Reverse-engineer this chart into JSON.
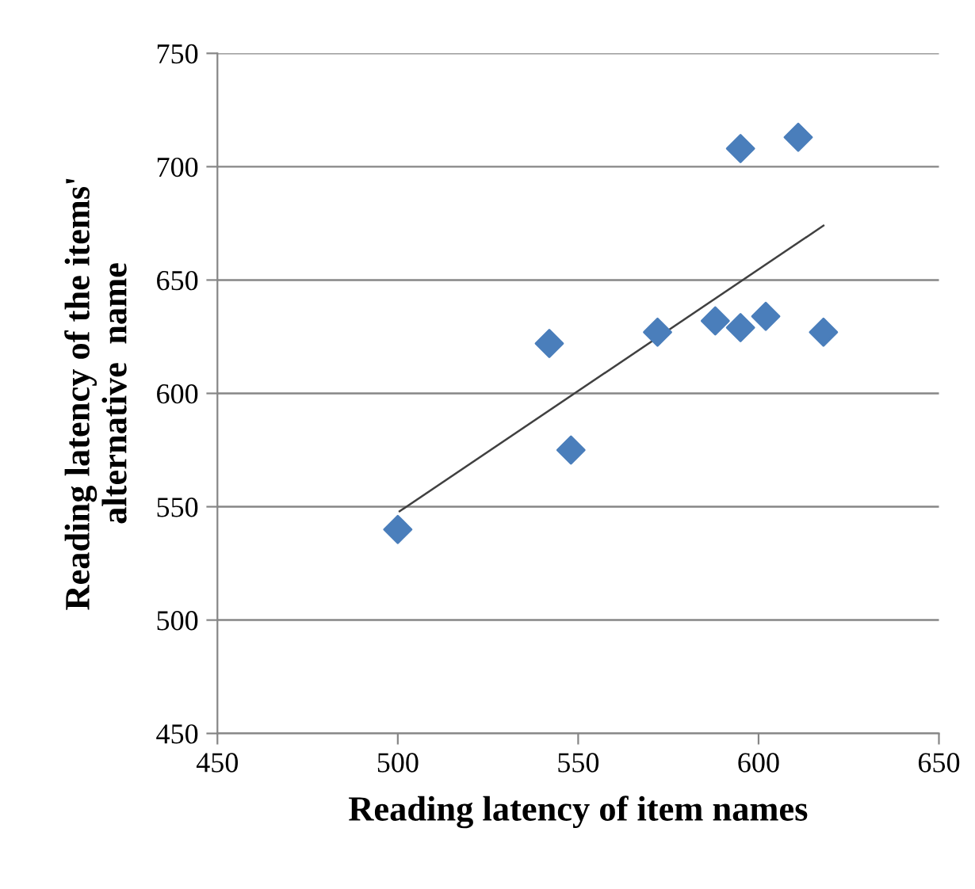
{
  "chart_data": {
    "type": "scatter",
    "xlabel": "Reading latency of item names",
    "ylabel": "Reading latency of the items'\nalternative  name",
    "xlim": [
      450,
      650
    ],
    "xticks": [
      450,
      500,
      550,
      600,
      650
    ],
    "ylim": [
      450,
      750
    ],
    "yticks": [
      450,
      500,
      550,
      600,
      650,
      700,
      750
    ],
    "grid": "y",
    "series": [
      {
        "marker": "diamond",
        "color": "#4a7ebb",
        "x": [
          500,
          542,
          548,
          572,
          588,
          595,
          602,
          595,
          611,
          618
        ],
        "values": [
          540,
          622,
          575,
          627,
          632,
          629,
          634,
          708,
          713,
          627
        ]
      },
      {
        "type": "line",
        "color": "#404040",
        "x": [
          500.5,
          618
        ],
        "values": [
          548,
          674
        ],
        "marker": "none",
        "line_style": "solid"
      }
    ]
  }
}
